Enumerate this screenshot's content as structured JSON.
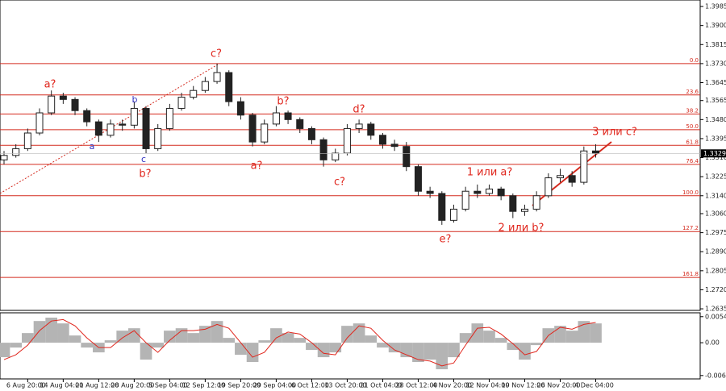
{
  "chart_data": {
    "type": "candlestick",
    "categories": [
      null,
      null,
      "6 Aug 20:00",
      null,
      null,
      "14 Aug 04:00",
      null,
      null,
      "21 Aug 12:00",
      null,
      null,
      "28 Aug 20:00",
      null,
      null,
      "5 Sep 04:00",
      null,
      null,
      "12 Sep 12:00",
      null,
      null,
      "19 Sep 20:00",
      null,
      null,
      "29 Sep 04:00",
      null,
      null,
      "6 Oct 12:00",
      null,
      null,
      "13 Oct 20:00",
      null,
      null,
      "21 Oct 04:00",
      null,
      null,
      "28 Oct 12:00",
      null,
      null,
      "4 Nov 20:00",
      null,
      null,
      "12 Nov 04:00",
      null,
      null,
      "19 Nov 12:00",
      null,
      null,
      "26 Nov 20:00",
      null,
      null,
      "4 Dec 04:00"
    ],
    "open": [
      1.33,
      1.332,
      1.335,
      1.342,
      1.351,
      1.3585,
      1.357,
      1.352,
      1.347,
      1.341,
      1.346,
      1.3455,
      1.353,
      1.335,
      1.344,
      1.353,
      1.358,
      1.361,
      1.365,
      1.369,
      1.356,
      1.35,
      1.338,
      1.346,
      1.351,
      1.348,
      1.344,
      1.339,
      1.33,
      1.333,
      1.344,
      1.346,
      1.341,
      1.337,
      1.336,
      1.327,
      1.316,
      1.315,
      1.303,
      1.308,
      1.316,
      1.315,
      1.317,
      1.314,
      1.307,
      1.308,
      1.314,
      1.322,
      1.323,
      1.32,
      1.334
    ],
    "high": [
      1.334,
      1.337,
      1.344,
      1.353,
      1.361,
      1.36,
      1.358,
      1.353,
      1.348,
      1.348,
      1.348,
      1.356,
      1.354,
      1.346,
      1.355,
      1.36,
      1.363,
      1.367,
      1.373,
      1.37,
      1.358,
      1.351,
      1.348,
      1.354,
      1.352,
      1.349,
      1.345,
      1.34,
      1.335,
      1.346,
      1.348,
      1.347,
      1.342,
      1.339,
      1.338,
      1.328,
      1.318,
      1.316,
      1.31,
      1.318,
      1.319,
      1.319,
      1.318,
      1.315,
      1.31,
      1.316,
      1.324,
      1.326,
      1.325,
      1.336,
      1.337
    ],
    "low": [
      1.328,
      1.331,
      1.334,
      1.341,
      1.35,
      1.355,
      1.35,
      1.345,
      1.338,
      1.34,
      1.343,
      1.344,
      1.333,
      1.334,
      1.343,
      1.352,
      1.357,
      1.36,
      1.364,
      1.354,
      1.348,
      1.336,
      1.337,
      1.345,
      1.346,
      1.342,
      1.337,
      1.327,
      1.329,
      1.332,
      1.342,
      1.339,
      1.335,
      1.334,
      1.325,
      1.314,
      1.313,
      1.301,
      1.302,
      1.307,
      1.313,
      1.314,
      1.312,
      1.304,
      1.305,
      1.307,
      1.313,
      1.32,
      1.318,
      1.319,
      1.331
    ],
    "close": [
      1.332,
      1.335,
      1.342,
      1.351,
      1.3585,
      1.357,
      1.352,
      1.347,
      1.341,
      1.346,
      1.3455,
      1.353,
      1.335,
      1.344,
      1.353,
      1.358,
      1.361,
      1.365,
      1.369,
      1.356,
      1.35,
      1.338,
      1.346,
      1.351,
      1.348,
      1.344,
      1.339,
      1.33,
      1.333,
      1.344,
      1.346,
      1.341,
      1.337,
      1.336,
      1.327,
      1.316,
      1.315,
      1.303,
      1.308,
      1.316,
      1.315,
      1.317,
      1.314,
      1.307,
      1.308,
      1.314,
      1.322,
      1.323,
      1.32,
      1.334,
      1.3329
    ],
    "up_color": "#222222",
    "down_color": "#222222",
    "ylim": [
      1.2628,
      1.4014
    ],
    "yticks": [
      1.3985,
      {
        "value": 1.39,
        "label": "1.3900"
      },
      1.3815,
      {
        "value": 1.373,
        "label": "1.3730"
      },
      1.3645,
      1.3565,
      {
        "value": 1.348,
        "label": "1.3480"
      },
      1.3395,
      {
        "value": 1.331,
        "label": "1.3310"
      },
      1.3225,
      {
        "value": 1.314,
        "label": "1.3140"
      },
      {
        "value": 1.306,
        "label": "1.3060"
      },
      1.2975,
      {
        "value": 1.289,
        "label": "1.2890"
      },
      1.2805,
      {
        "value": 1.272,
        "label": "1.2720"
      },
      1.2635
    ],
    "last_price": 1.3329,
    "fib_color": "#d42a1e",
    "fib_levels": [
      {
        "label": "0.0",
        "value": 1.373
      },
      {
        "label": "23.6",
        "value": 1.359
      },
      {
        "label": "38.2",
        "value": 1.3505
      },
      {
        "label": "50.0",
        "value": 1.3435
      },
      {
        "label": "61.8",
        "value": 1.3365
      },
      {
        "label": "76.4",
        "value": 1.328
      },
      {
        "label": "100.0",
        "value": 1.314
      },
      {
        "label": "127.2",
        "value": 1.298
      },
      {
        "label": "161.8",
        "value": 1.2775
      }
    ],
    "annotations": [
      "a?",
      "b",
      "a",
      "c",
      "b?",
      "c?",
      "b?",
      "a?",
      "d?",
      "c?",
      "1 или a?",
      "2 или b?",
      "e?",
      "3 или c?"
    ],
    "indicator": {
      "ylim": [
        -0.0075,
        0.0062
      ],
      "yticks": [
        0.0054,
        {
          "value": 0,
          "label": "0.00"
        },
        -0.0068
      ],
      "histogram_color": "#b4b4b4",
      "signal_color": "#e0261d",
      "histogram": [
        -0.003,
        -0.001,
        0.002,
        0.0045,
        0.0052,
        0.004,
        0.0015,
        -0.001,
        -0.002,
        0.0005,
        0.0025,
        0.003,
        -0.0035,
        -0.001,
        0.0025,
        0.003,
        0.002,
        0.0035,
        0.0045,
        0.001,
        -0.0025,
        -0.004,
        0.0005,
        0.003,
        0.002,
        0.001,
        -0.0015,
        -0.003,
        -0.002,
        0.0035,
        0.004,
        0.0015,
        -0.001,
        -0.002,
        -0.003,
        -0.004,
        -0.0035,
        -0.0055,
        -0.003,
        0.002,
        0.004,
        0.0025,
        0.001,
        -0.0015,
        -0.0035,
        -0.0005,
        0.003,
        0.0035,
        0.0025,
        0.0045,
        0.004
      ],
      "signal": [
        -0.0035,
        -0.0025,
        -0.0005,
        0.0025,
        0.0045,
        0.0048,
        0.0035,
        0.001,
        -0.001,
        -0.001,
        0.001,
        0.0025,
        0.0,
        -0.002,
        0.0005,
        0.0025,
        0.0025,
        0.0028,
        0.0038,
        0.003,
        0.0,
        -0.003,
        -0.002,
        0.001,
        0.0022,
        0.0018,
        0.0,
        -0.0022,
        -0.0025,
        0.001,
        0.0035,
        0.003,
        0.0005,
        -0.0015,
        -0.0025,
        -0.0035,
        -0.0038,
        -0.0048,
        -0.0042,
        -0.0005,
        0.003,
        0.0032,
        0.0018,
        -0.0002,
        -0.0025,
        -0.0018,
        0.0015,
        0.0032,
        0.0028,
        0.0038,
        0.0042
      ]
    }
  }
}
